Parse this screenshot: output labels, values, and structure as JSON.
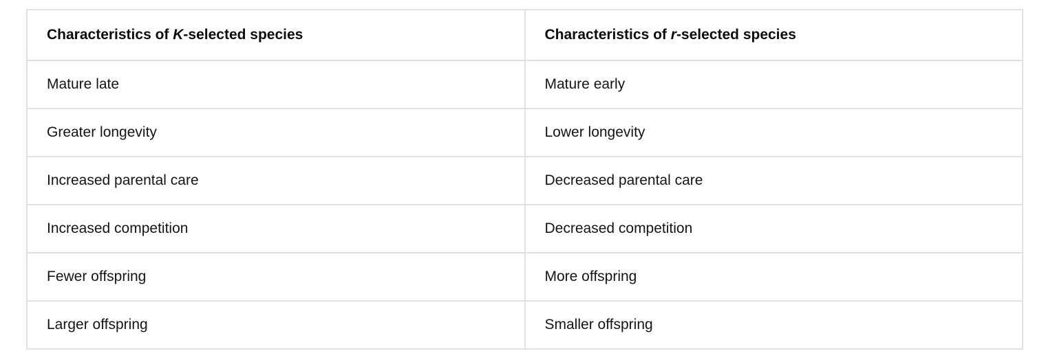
{
  "table": {
    "colors": {
      "border": "#e1e1e1",
      "background": "#ffffff",
      "header_text": "#0c0c0c",
      "body_text": "#141414"
    },
    "columns": [
      {
        "header_prefix": "Characteristics of ",
        "header_var": "K",
        "header_suffix": "-selected species"
      },
      {
        "header_prefix": "Characteristics of ",
        "header_var": "r",
        "header_suffix": "-selected species"
      }
    ],
    "rows": [
      [
        "Mature late",
        "Mature early"
      ],
      [
        "Greater longevity",
        "Lower longevity"
      ],
      [
        "Increased parental care",
        "Decreased parental care"
      ],
      [
        "Increased competition",
        "Decreased competition"
      ],
      [
        "Fewer offspring",
        "More offspring"
      ],
      [
        "Larger offspring",
        "Smaller offspring"
      ]
    ]
  }
}
